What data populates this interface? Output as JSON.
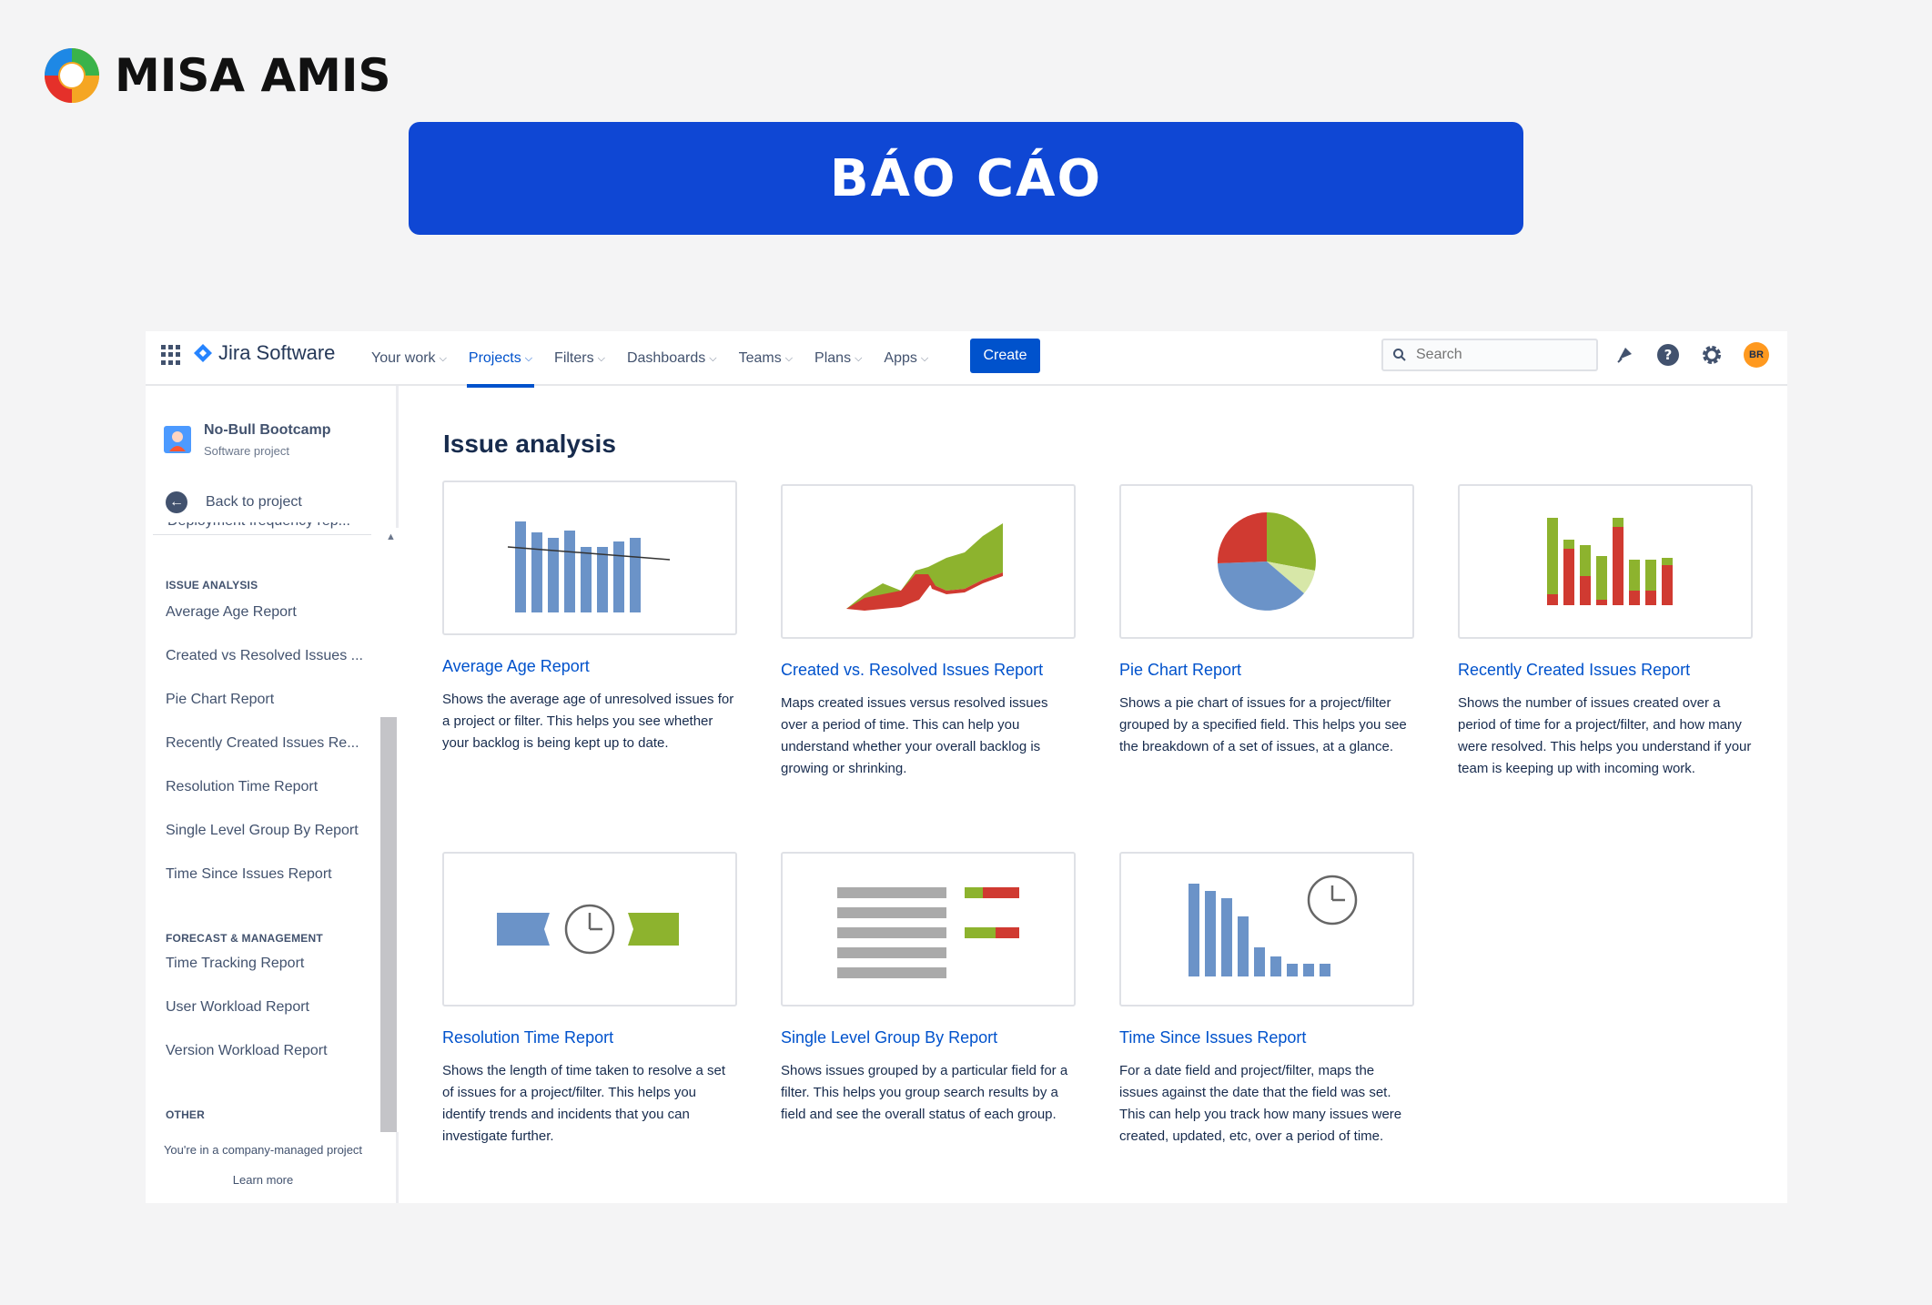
{
  "brand": {
    "name": "MISA AMIS"
  },
  "banner": {
    "title": "BÁO CÁO"
  },
  "topnav": {
    "app_name": "Jira Software",
    "items": [
      {
        "label": "Your work",
        "active": false
      },
      {
        "label": "Projects",
        "active": true
      },
      {
        "label": "Filters",
        "active": false
      },
      {
        "label": "Dashboards",
        "active": false
      },
      {
        "label": "Teams",
        "active": false
      },
      {
        "label": "Plans",
        "active": false
      },
      {
        "label": "Apps",
        "active": false
      }
    ],
    "create_label": "Create",
    "search_placeholder": "Search",
    "avatar_initials": "BR",
    "icons": [
      "notifications-icon",
      "help-icon",
      "settings-icon"
    ]
  },
  "sidebar": {
    "project_name": "No-Bull Bootcamp",
    "project_type": "Software project",
    "back_label": "Back to project",
    "cut_item": "Deployment frequency rep...",
    "issue_analysis": {
      "heading": "ISSUE ANALYSIS",
      "items": [
        "Average Age Report",
        "Created vs Resolved Issues ...",
        "Pie Chart Report",
        "Recently Created Issues Re...",
        "Resolution Time Report",
        "Single Level Group By Report",
        "Time Since Issues Report"
      ]
    },
    "forecast": {
      "heading": "FORECAST & MANAGEMENT",
      "items": [
        "Time Tracking Report",
        "User Workload Report",
        "Version Workload Report"
      ]
    },
    "other": {
      "heading": "OTHER",
      "note": "You're in a company-managed project",
      "learn_more": "Learn more"
    }
  },
  "main": {
    "title": "Issue analysis",
    "cards": [
      {
        "title": "Average Age Report",
        "desc": "Shows the average age of unresolved issues for a project or filter. This helps you see whether your backlog is being kept up to date."
      },
      {
        "title": "Created vs. Resolved Issues Report",
        "desc": "Maps created issues versus resolved issues over a period of time. This can help you understand whether your overall backlog is growing or shrinking."
      },
      {
        "title": "Pie Chart Report",
        "desc": "Shows a pie chart of issues for a project/filter grouped by a specified field. This helps you see the breakdown of a set of issues, at a glance."
      },
      {
        "title": "Recently Created Issues Report",
        "desc": "Shows the number of issues created over a period of time for a project/filter, and how many were resolved. This helps you understand if your team is keeping up with incoming work."
      },
      {
        "title": "Resolution Time Report",
        "desc": "Shows the length of time taken to resolve a set of issues for a project/filter. This helps you identify trends and incidents that you can investigate further."
      },
      {
        "title": "Single Level Group By Report",
        "desc": "Shows issues grouped by a particular field for a filter. This helps you group search results by a field and see the overall status of each group."
      },
      {
        "title": "Time Since Issues Report",
        "desc": "For a date field and project/filter, maps the issues against the date that the field was set. This can help you track how many issues were created, updated, etc, over a period of time."
      }
    ]
  },
  "colors": {
    "accent": "#0052cc",
    "banner": "#0f47d4",
    "chart_blue": "#6b93c8",
    "chart_green": "#8db32e",
    "chart_red": "#d03a31"
  }
}
